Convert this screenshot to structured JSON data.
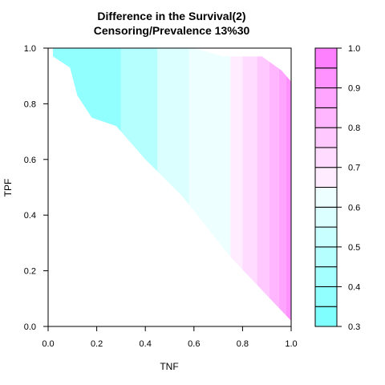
{
  "chart_data": {
    "type": "heatmap",
    "title_line1": "Difference in the Survival(2)",
    "title_line2": "Censoring/Prevalence 13%30",
    "xlabel": "TNF",
    "ylabel": "TPF",
    "xlim": [
      0,
      1
    ],
    "ylim": [
      0,
      1
    ],
    "x_ticks": [
      "0.0",
      "0.2",
      "0.4",
      "0.6",
      "0.8",
      "1.0"
    ],
    "y_ticks": [
      "0.0",
      "0.2",
      "0.4",
      "0.6",
      "0.8",
      "1.0"
    ],
    "colorbar": {
      "range": [
        0.3,
        1.0
      ],
      "tick_labels": [
        "0.3",
        "0.4",
        "0.5",
        "0.6",
        "0.7",
        "0.8",
        "0.9",
        "1.0"
      ],
      "levels": [
        0.3,
        0.35,
        0.4,
        0.45,
        0.5,
        0.55,
        0.6,
        0.65,
        0.7,
        0.75,
        0.8,
        0.85,
        0.9,
        0.95,
        1.0
      ],
      "colors": [
        "#80FFFF",
        "#92FFFF",
        "#A4FFFF",
        "#B6FFFF",
        "#C8FFFF",
        "#DBFFFF",
        "#EDFFFF",
        "#FFEDFF",
        "#FFDBFF",
        "#FFC8FF",
        "#FFB6FF",
        "#FFA4FF",
        "#FF92FF",
        "#FF80FF"
      ]
    },
    "region_boundary": [
      [
        0.02,
        0.97
      ],
      [
        0.09,
        0.93
      ],
      [
        0.12,
        0.83
      ],
      [
        0.18,
        0.75
      ],
      [
        0.28,
        0.72
      ],
      [
        0.4,
        0.6
      ],
      [
        0.55,
        0.47
      ],
      [
        0.75,
        0.25
      ],
      [
        1.0,
        0.02
      ],
      [
        1.0,
        0.88
      ],
      [
        0.96,
        0.92
      ],
      [
        0.88,
        0.97
      ],
      [
        0.72,
        0.97
      ],
      [
        0.6,
        1.0
      ],
      [
        0.02,
        1.0
      ]
    ],
    "field_bands": [
      {
        "x_start": 0.0,
        "x_end": 0.3,
        "level_index": 1
      },
      {
        "x_start": 0.3,
        "x_end": 0.45,
        "level_index": 3
      },
      {
        "x_start": 0.45,
        "x_end": 0.58,
        "level_index": 5
      },
      {
        "x_start": 0.58,
        "x_end": 0.68,
        "level_index": 6
      },
      {
        "x_start": 0.68,
        "x_end": 0.75,
        "level_index": 6
      },
      {
        "x_start": 0.75,
        "x_end": 0.8,
        "level_index": 7
      },
      {
        "x_start": 0.8,
        "x_end": 0.86,
        "level_index": 8
      },
      {
        "x_start": 0.86,
        "x_end": 0.91,
        "level_index": 9
      },
      {
        "x_start": 0.91,
        "x_end": 0.95,
        "level_index": 10
      },
      {
        "x_start": 0.95,
        "x_end": 0.98,
        "level_index": 11
      },
      {
        "x_start": 0.98,
        "x_end": 1.0,
        "level_index": 12
      }
    ]
  }
}
